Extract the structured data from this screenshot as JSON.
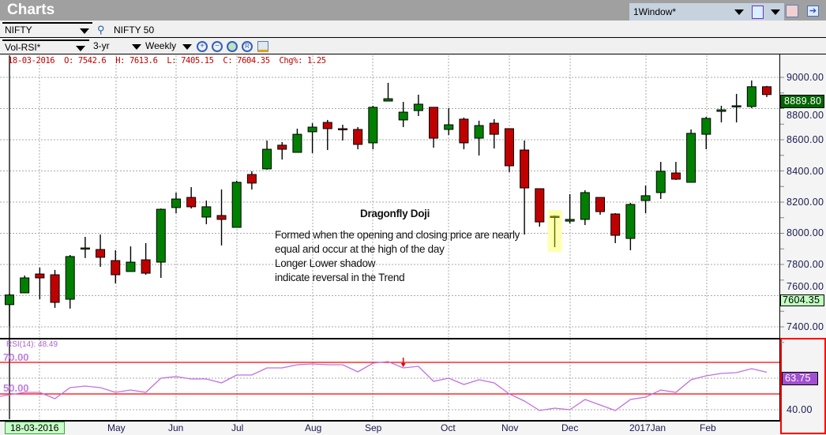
{
  "app": {
    "title": "Charts"
  },
  "window_select": {
    "value": "1Window*"
  },
  "toolbar1": {
    "symbol": "NIFTY",
    "symbol_name": "NIFTY 50"
  },
  "toolbar2": {
    "template": "Vol-RSI*",
    "period": "3-yr",
    "interval": "Weekly"
  },
  "info": {
    "date": "18-03-2016",
    "open": "O: 7542.6",
    "high": "H: 7613.6",
    "low": "L: 7405.15",
    "close": "C: 7604.35",
    "chg": "Chg%: 1.25"
  },
  "annotation": {
    "title": "Dragonfly Doji",
    "lines": [
      "Formed when the opening and closing price are nearly",
      "equal and occur at the high of the day",
      "Longer Lower shadow",
      "indicate reversal in the Trend"
    ]
  },
  "price_axis": {
    "labels": [
      "9000.00",
      "8800.00",
      "8600.00",
      "8400.00",
      "8200.00",
      "8000.00",
      "7800.00",
      "7600.00",
      "7400.00"
    ],
    "last_price": "8889.80",
    "cursor_price": "7604.35"
  },
  "rsi": {
    "label": "RSI(14):  48.49",
    "level_high": "70.00",
    "level_low": "50.00",
    "current": "63.75",
    "axis_label": "40.00"
  },
  "time_axis": {
    "cursor_date": "18-03-2016",
    "labels": [
      "May",
      "Jun",
      "Jul",
      "Aug",
      "Sep",
      "Oct",
      "Nov",
      "Dec",
      "2017Jan",
      "Feb"
    ]
  },
  "colors": {
    "up": "#008000",
    "down": "#c00000",
    "rsi_line": "#c070e0",
    "rsi_levels": "#ff0000",
    "highlight": "#ffffb0"
  },
  "chart_data": {
    "type": "candlestick",
    "ylim": [
      7300,
      9080
    ],
    "interval": "Weekly",
    "ohlc": [
      [
        7542.6,
        7613.6,
        7405.15,
        7604.35
      ],
      [
        7618,
        7729,
        7618,
        7714
      ],
      [
        7739,
        7780,
        7577,
        7714
      ],
      [
        7734,
        7765,
        7522,
        7557
      ],
      [
        7577,
        7861,
        7517,
        7851
      ],
      [
        7901,
        7977,
        7841,
        7906
      ],
      [
        7896,
        7992,
        7785,
        7846
      ],
      [
        7825,
        7891,
        7679,
        7734
      ],
      [
        7755,
        7916,
        7755,
        7815
      ],
      [
        7830,
        7937,
        7734,
        7744
      ],
      [
        7815,
        8159,
        7714,
        8154
      ],
      [
        8165,
        8261,
        8129,
        8220
      ],
      [
        8230,
        8296,
        8159,
        8170
      ],
      [
        8104,
        8210,
        8058,
        8170
      ],
      [
        8114,
        8281,
        7922,
        8089
      ],
      [
        8038,
        8337,
        8038,
        8327
      ],
      [
        8377,
        8398,
        8281,
        8322
      ],
      [
        8413,
        8595,
        8408,
        8539
      ],
      [
        8565,
        8585,
        8473,
        8539
      ],
      [
        8519,
        8671,
        8519,
        8635
      ],
      [
        8651,
        8706,
        8514,
        8681
      ],
      [
        8711,
        8727,
        8534,
        8671
      ],
      [
        8671,
        8696,
        8595,
        8666
      ],
      [
        8666,
        8681,
        8539,
        8570
      ],
      [
        8580,
        8818,
        8539,
        8808
      ],
      [
        8848,
        8965,
        8848,
        8863
      ],
      [
        8727,
        8843,
        8681,
        8777
      ],
      [
        8787,
        8889,
        8752,
        8828
      ],
      [
        8808,
        8808,
        8549,
        8610
      ],
      [
        8666,
        8803,
        8630,
        8696
      ],
      [
        8732,
        8742,
        8539,
        8580
      ],
      [
        8610,
        8722,
        8499,
        8691
      ],
      [
        8706,
        8732,
        8544,
        8635
      ],
      [
        8671,
        8671,
        8393,
        8433
      ],
      [
        8534,
        8595,
        7992,
        8291
      ],
      [
        8286,
        8286,
        8043,
        8073
      ],
      [
        8104,
        8114,
        7911,
        8109
      ],
      [
        8078,
        8251,
        8063,
        8089
      ],
      [
        8089,
        8276,
        8053,
        8261
      ],
      [
        8230,
        8230,
        8119,
        8139
      ],
      [
        8124,
        8129,
        7937,
        7987
      ],
      [
        7967,
        8195,
        7891,
        8185
      ],
      [
        8210,
        8306,
        8129,
        8241
      ],
      [
        8261,
        8458,
        8220,
        8398
      ],
      [
        8387,
        8458,
        8342,
        8347
      ],
      [
        8327,
        8666,
        8327,
        8641
      ],
      [
        8635,
        8747,
        8539,
        8737
      ],
      [
        8782,
        8818,
        8711,
        8792
      ],
      [
        8818,
        8894,
        8711,
        8818
      ],
      [
        8813,
        8980,
        8803,
        8940
      ],
      [
        8940,
        8945,
        8874,
        8889.8
      ]
    ],
    "highlight_index": 36,
    "rsi_values": [
      48.49,
      51,
      51,
      47,
      54,
      55,
      54,
      51,
      52.5,
      51,
      60,
      61,
      59.5,
      59.5,
      57,
      62,
      62,
      66.5,
      66.5,
      68.5,
      69,
      68.5,
      68.5,
      64,
      69.5,
      70.5,
      66.5,
      67.5,
      58,
      60,
      56,
      59,
      57,
      50,
      45.5,
      39.5,
      41,
      40,
      46.5,
      43,
      39.5,
      46.5,
      48,
      52.5,
      51,
      59,
      61.5,
      63,
      63.5,
      66,
      63.75
    ],
    "rsi_marker_index": 26
  }
}
